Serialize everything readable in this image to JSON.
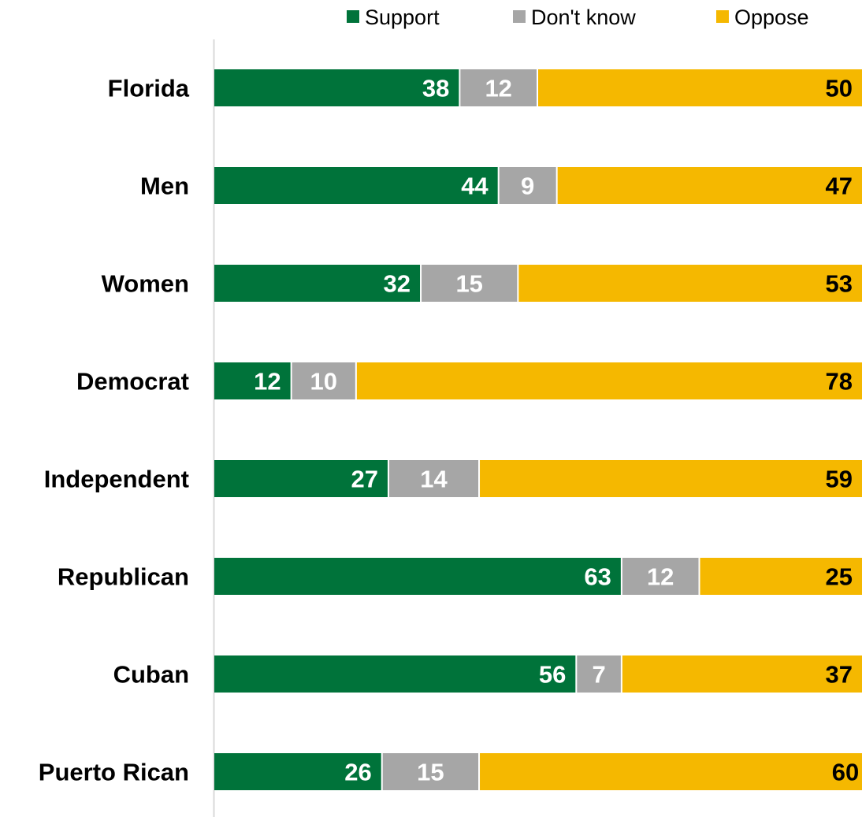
{
  "chart_data": {
    "type": "bar",
    "orientation": "horizontal",
    "stacked": true,
    "categories": [
      "Florida",
      "Men",
      "Women",
      "Democrat",
      "Independent",
      "Republican",
      "Cuban",
      "Puerto Rican"
    ],
    "series": [
      {
        "name": "Support",
        "color": "#00733a",
        "label_color": "#ffffff",
        "values": [
          38,
          44,
          32,
          12,
          27,
          63,
          56,
          26
        ]
      },
      {
        "name": "Don't know",
        "color": "#a6a6a6",
        "label_color": "#ffffff",
        "values": [
          12,
          9,
          15,
          10,
          14,
          12,
          7,
          15
        ]
      },
      {
        "name": "Oppose",
        "color": "#f5b800",
        "label_color": "#000000",
        "values": [
          50,
          47,
          53,
          78,
          59,
          25,
          37,
          60
        ]
      }
    ],
    "xlim": [
      0,
      100
    ],
    "grid": false,
    "legend_position": "top",
    "title": "",
    "xlabel": "",
    "ylabel": ""
  }
}
